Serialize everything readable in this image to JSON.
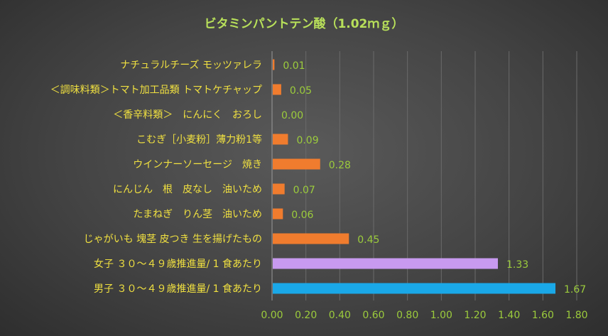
{
  "chart_data": {
    "type": "bar",
    "orientation": "horizontal",
    "title": "ビタミンパントテン酸（1.02ｍｇ）",
    "categories": [
      "ナチュラルチーズ モッツァレラ",
      "＜調味料類＞トマト加工品類 トマトケチャップ",
      "＜香辛料類＞　にんにく　おろし",
      "こむぎ［小麦粉］薄力粉1等",
      "ウインナーソーセージ　焼き",
      "にんじん　根　皮なし　油いため",
      "たまねぎ　りん茎　油いため",
      "じゃがいも 塊茎 皮つき 生を揚げたもの",
      "女子 ３０～４９歳推進量/ 1 食あたり",
      "男子 ３０～４９歳推進量/ 1 食あたり"
    ],
    "values": [
      0.01,
      0.05,
      0.0,
      0.09,
      0.28,
      0.07,
      0.06,
      0.45,
      1.33,
      1.67
    ],
    "value_labels": [
      "0.01",
      "0.05",
      "0.00",
      "0.09",
      "0.28",
      "0.07",
      "0.06",
      "0.45",
      "1.33",
      "1.67"
    ],
    "colors": [
      "#f07c2e",
      "#f07c2e",
      "#f07c2e",
      "#f07c2e",
      "#f07c2e",
      "#f07c2e",
      "#f07c2e",
      "#f07c2e",
      "#c89af0",
      "#1aa8e8"
    ],
    "xlim": [
      0,
      1.8
    ],
    "x_ticks": [
      "0.00",
      "0.20",
      "0.40",
      "0.60",
      "0.80",
      "1.00",
      "1.20",
      "1.40",
      "1.60",
      "1.80"
    ],
    "grid": true,
    "legend": "none"
  }
}
